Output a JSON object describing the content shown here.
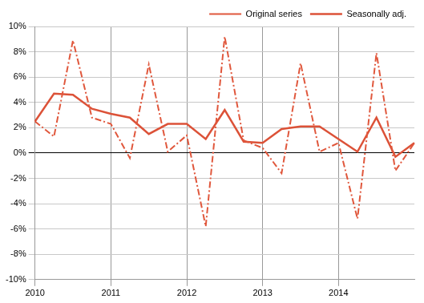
{
  "chart_data": {
    "type": "line",
    "categories": [
      "2010",
      null,
      null,
      null,
      "2011",
      null,
      null,
      null,
      "2012",
      null,
      null,
      null,
      "2013",
      null,
      null,
      null,
      "2014",
      null,
      null,
      null,
      null
    ],
    "series": [
      {
        "name": "Original series",
        "color": "#e0573c",
        "line_style": "dashdot",
        "values": [
          2.5,
          1.3,
          8.9,
          2.8,
          2.3,
          -0.4,
          7.0,
          0.1,
          1.4,
          -5.8,
          9.2,
          1.0,
          0.4,
          -1.6,
          7.1,
          0.1,
          0.8,
          -5.2,
          7.9,
          -1.4,
          0.8
        ]
      },
      {
        "name": "Seasonally adj.",
        "color": "#dc5238",
        "line_style": "solid",
        "values": [
          2.5,
          4.7,
          4.6,
          3.5,
          3.1,
          2.8,
          1.5,
          2.3,
          2.3,
          1.1,
          3.4,
          0.9,
          0.8,
          1.9,
          2.1,
          2.1,
          1.1,
          0.1,
          2.8,
          -0.3,
          0.8
        ]
      }
    ],
    "ylim": [
      -10,
      10
    ],
    "yticks": [
      {
        "value": -10,
        "label": "-10%"
      },
      {
        "value": -8,
        "label": "-8%"
      },
      {
        "value": -6,
        "label": "-6%"
      },
      {
        "value": -4,
        "label": "-4%"
      },
      {
        "value": -2,
        "label": "-2%"
      },
      {
        "value": 0,
        "label": "0%"
      },
      {
        "value": 2,
        "label": "2%"
      },
      {
        "value": 4,
        "label": "4%"
      },
      {
        "value": 6,
        "label": "6%"
      },
      {
        "value": 8,
        "label": "8%"
      },
      {
        "value": 10,
        "label": "10%"
      }
    ],
    "grid": true,
    "legend": "top-right"
  }
}
